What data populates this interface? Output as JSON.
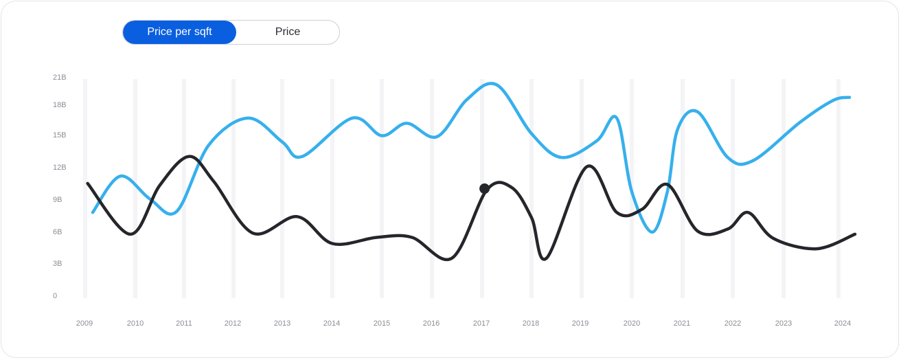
{
  "toggle": {
    "options": [
      {
        "label": "Price per sqft",
        "selected": true
      },
      {
        "label": "Price",
        "selected": false
      }
    ],
    "active_color": "#0a5fe0"
  },
  "chart_data": {
    "type": "line",
    "title": "",
    "xlabel": "",
    "ylabel": "",
    "x": [
      "2009",
      "2010",
      "2011",
      "2012",
      "2013",
      "2014",
      "2015",
      "2016",
      "2017",
      "2018",
      "2019",
      "2020",
      "2021",
      "2022",
      "2023",
      "2024"
    ],
    "y_ticks": [
      "0",
      "3B",
      "6B",
      "9B",
      "12B",
      "15B",
      "18B",
      "21B"
    ],
    "ylim": [
      0,
      21
    ],
    "grid": "vertical bands",
    "series": [
      {
        "color": "#36b0ec",
        "points": [
          [
            2009.15,
            8.0
          ],
          [
            2009.7,
            11.5
          ],
          [
            2010.3,
            9.3
          ],
          [
            2010.85,
            8.1
          ],
          [
            2011.5,
            14.5
          ],
          [
            2012.3,
            17.1
          ],
          [
            2013.0,
            14.8
          ],
          [
            2013.4,
            13.4
          ],
          [
            2014.4,
            17.1
          ],
          [
            2015.0,
            15.4
          ],
          [
            2015.5,
            16.6
          ],
          [
            2016.1,
            15.3
          ],
          [
            2016.7,
            18.9
          ],
          [
            2017.3,
            20.3
          ],
          [
            2018.0,
            15.6
          ],
          [
            2018.6,
            13.3
          ],
          [
            2019.3,
            14.9
          ],
          [
            2019.7,
            17.1
          ],
          [
            2020.0,
            10.0
          ],
          [
            2020.4,
            6.1
          ],
          [
            2020.7,
            10.0
          ],
          [
            2020.9,
            16.0
          ],
          [
            2021.3,
            17.7
          ],
          [
            2021.9,
            13.3
          ],
          [
            2022.4,
            13.0
          ],
          [
            2023.3,
            16.7
          ],
          [
            2023.9,
            18.8
          ],
          [
            2024.2,
            19.1
          ]
        ]
      },
      {
        "color": "#25262b",
        "points": [
          [
            2009.05,
            10.8
          ],
          [
            2009.9,
            5.9
          ],
          [
            2010.5,
            10.6
          ],
          [
            2011.1,
            13.4
          ],
          [
            2011.6,
            11.0
          ],
          [
            2012.4,
            6.0
          ],
          [
            2013.3,
            7.6
          ],
          [
            2014.0,
            5.0
          ],
          [
            2014.9,
            5.6
          ],
          [
            2015.6,
            5.6
          ],
          [
            2016.4,
            3.6
          ],
          [
            2017.1,
            10.2
          ],
          [
            2017.6,
            10.4
          ],
          [
            2018.0,
            7.5
          ],
          [
            2018.3,
            3.6
          ],
          [
            2019.1,
            12.4
          ],
          [
            2019.7,
            8.0
          ],
          [
            2020.2,
            8.3
          ],
          [
            2020.7,
            10.7
          ],
          [
            2021.3,
            6.2
          ],
          [
            2021.9,
            6.4
          ],
          [
            2022.3,
            8.0
          ],
          [
            2022.8,
            5.5
          ],
          [
            2023.6,
            4.5
          ],
          [
            2024.3,
            5.9
          ]
        ],
        "marker": [
          2017.05,
          10.3
        ]
      }
    ]
  }
}
